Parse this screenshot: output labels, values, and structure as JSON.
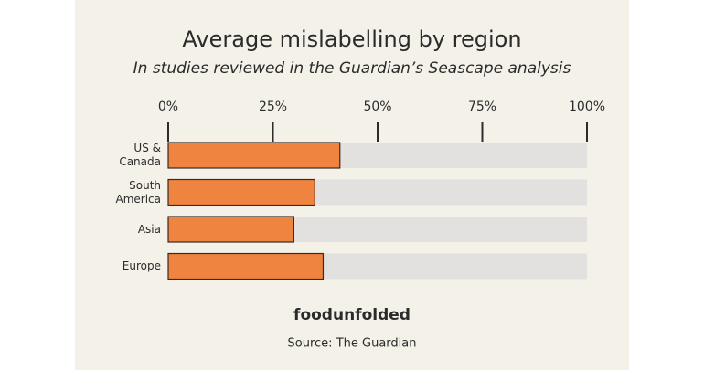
{
  "chart_data": {
    "type": "bar",
    "orientation": "horizontal",
    "title": "Average mislabelling by region",
    "subtitle": "In studies reviewed in the Guardian’s Seascape analysis",
    "categories": [
      "US & Canada",
      "South America",
      "Asia",
      "Europe"
    ],
    "values": [
      41,
      35,
      30,
      37
    ],
    "color": "#ef8340",
    "track_color": "#e2e1df",
    "xlim": [
      0,
      100
    ],
    "xticks": [
      {
        "value": 0,
        "label": "0%"
      },
      {
        "value": 25,
        "label": "25%"
      },
      {
        "value": 50,
        "label": "50%"
      },
      {
        "value": 75,
        "label": "75%"
      },
      {
        "value": 100,
        "label": "100%"
      }
    ],
    "logo": "foodunfolded",
    "source": "Source: The Guardian"
  }
}
